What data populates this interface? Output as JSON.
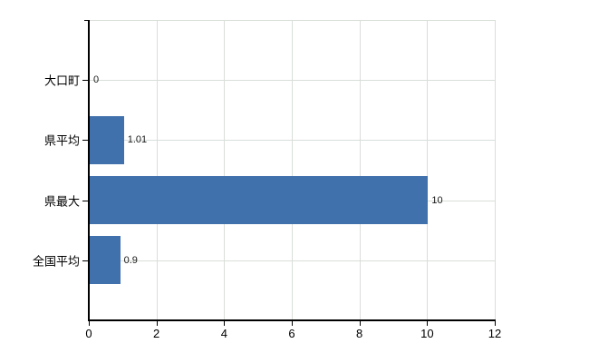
{
  "chart_data": {
    "type": "bar",
    "orientation": "horizontal",
    "title": "",
    "xlabel": "",
    "ylabel": "",
    "categories": [
      "大口町",
      "県平均",
      "県最大",
      "全国平均"
    ],
    "values": [
      0,
      1.01,
      10,
      0.9
    ],
    "value_labels": [
      "0",
      "1.01",
      "10",
      "0.9"
    ],
    "x_ticks": [
      0,
      2,
      4,
      6,
      8,
      10,
      12
    ],
    "x_tick_labels": [
      "0",
      "2",
      "4",
      "6",
      "8",
      "10",
      "12"
    ],
    "xlim": [
      0,
      12
    ],
    "grid": true,
    "legend": false,
    "bar_color": "#4171ad",
    "grid_color": "#d9ded9",
    "axis_color": "#000000",
    "text_color": "#000000",
    "background_color": "#ffffff"
  }
}
